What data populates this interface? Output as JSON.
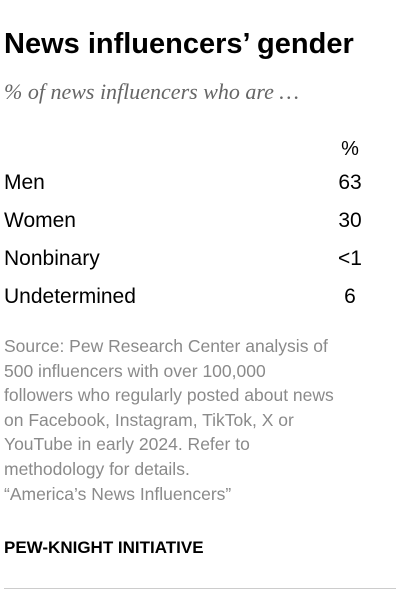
{
  "title": "News influencers’ gender",
  "subtitle": "% of news influencers who are …",
  "chart_data": {
    "type": "table",
    "column_header": "%",
    "rows": [
      {
        "label": "Men",
        "value": "63"
      },
      {
        "label": "Women",
        "value": "30"
      },
      {
        "label": "Nonbinary",
        "value": "<1"
      },
      {
        "label": "Undetermined",
        "value": "6"
      }
    ]
  },
  "source": {
    "lines": [
      "Source: Pew Research Center analysis of",
      "500 influencers with over 100,000",
      "followers who regularly posted about news",
      "on Facebook, Instagram, TikTok, X or",
      "YouTube in early 2024. Refer to",
      "methodology for details.",
      "“America’s News Influencers”"
    ]
  },
  "brand": "PEW-KNIGHT INITIATIVE"
}
